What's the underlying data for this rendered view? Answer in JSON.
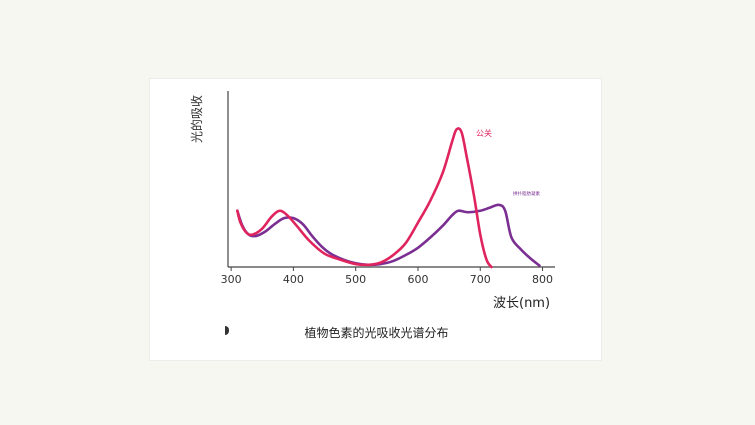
{
  "chart_data": {
    "type": "line",
    "title": "",
    "caption": "植物色素的光吸收光谱分布",
    "xlabel": "波长(nm)",
    "ylabel": "光的吸收",
    "xlim": [
      295,
      820
    ],
    "ylim": [
      0,
      100
    ],
    "x_ticks": [
      300,
      400,
      500,
      600,
      700,
      800
    ],
    "grid": false,
    "series": [
      {
        "name": "公关",
        "color": "#e0245e",
        "points": [
          [
            310,
            38
          ],
          [
            315,
            30
          ],
          [
            325,
            23
          ],
          [
            335,
            22
          ],
          [
            350,
            26
          ],
          [
            365,
            34
          ],
          [
            378,
            38
          ],
          [
            390,
            35
          ],
          [
            405,
            28
          ],
          [
            425,
            18
          ],
          [
            450,
            9
          ],
          [
            475,
            5
          ],
          [
            500,
            2
          ],
          [
            520,
            1.5
          ],
          [
            540,
            3
          ],
          [
            560,
            8
          ],
          [
            580,
            16
          ],
          [
            600,
            30
          ],
          [
            620,
            45
          ],
          [
            640,
            64
          ],
          [
            655,
            85
          ],
          [
            662,
            93
          ],
          [
            670,
            91
          ],
          [
            678,
            75
          ],
          [
            690,
            48
          ],
          [
            700,
            22
          ],
          [
            710,
            5
          ],
          [
            718,
            0
          ]
        ]
      },
      {
        "name": "拼扑脂肪凝素",
        "color": "#7b2f92",
        "points": [
          [
            310,
            38
          ],
          [
            318,
            28
          ],
          [
            328,
            22
          ],
          [
            340,
            21
          ],
          [
            355,
            24
          ],
          [
            370,
            29
          ],
          [
            385,
            33
          ],
          [
            400,
            33
          ],
          [
            415,
            29
          ],
          [
            430,
            21
          ],
          [
            445,
            14
          ],
          [
            460,
            9
          ],
          [
            480,
            5
          ],
          [
            500,
            2.5
          ],
          [
            520,
            1.5
          ],
          [
            540,
            2
          ],
          [
            560,
            4
          ],
          [
            580,
            8
          ],
          [
            600,
            13
          ],
          [
            620,
            20
          ],
          [
            640,
            28
          ],
          [
            655,
            35
          ],
          [
            665,
            38
          ],
          [
            680,
            37
          ],
          [
            700,
            38
          ],
          [
            715,
            40
          ],
          [
            730,
            42
          ],
          [
            740,
            38
          ],
          [
            750,
            20
          ],
          [
            765,
            12
          ],
          [
            780,
            6
          ],
          [
            795,
            1
          ]
        ]
      }
    ]
  }
}
